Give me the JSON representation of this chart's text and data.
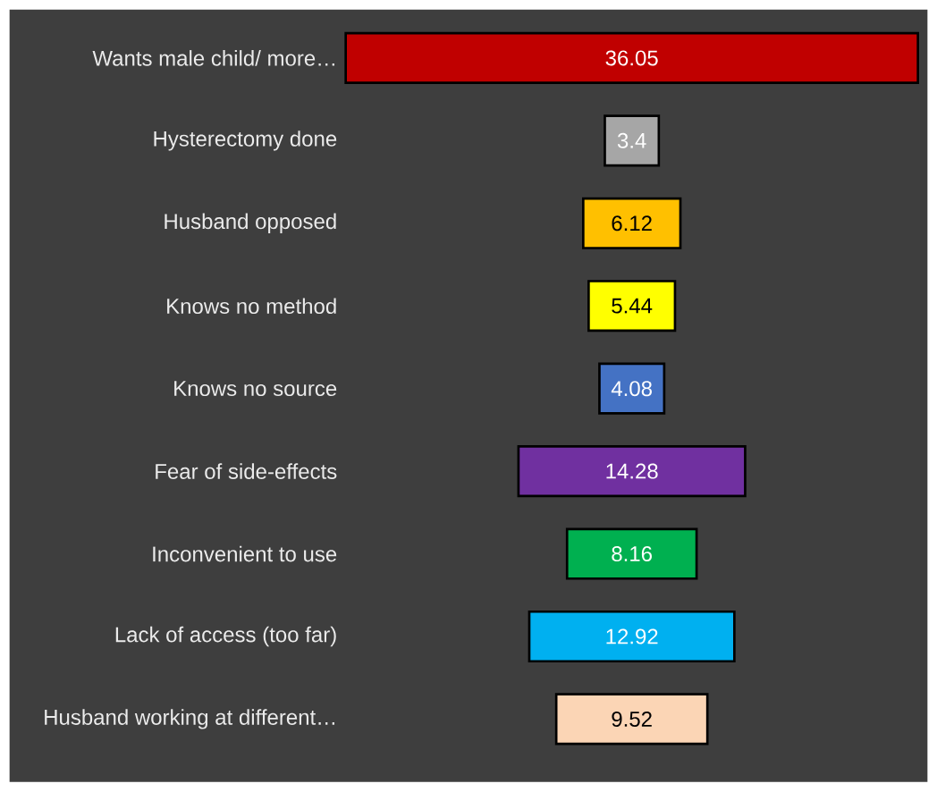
{
  "chart_data": {
    "type": "other",
    "data_labels": true,
    "categories": [
      "Wants male child/ more…",
      "Hysterectomy done",
      "Husband opposed",
      "Knows no method",
      "Knows no source",
      "Fear of side-effects",
      "Inconvenient to use",
      "Lack of access (too far)",
      "Husband working at different…"
    ],
    "values": [
      36.05,
      3.4,
      6.12,
      5.44,
      4.08,
      14.28,
      8.16,
      12.92,
      9.52
    ],
    "colors": [
      "#c00000",
      "#a6a6a6",
      "#ffc000",
      "#ffff00",
      "#4472c4",
      "#7030a0",
      "#00b050",
      "#00b0f0",
      "#fbd5b5"
    ]
  }
}
